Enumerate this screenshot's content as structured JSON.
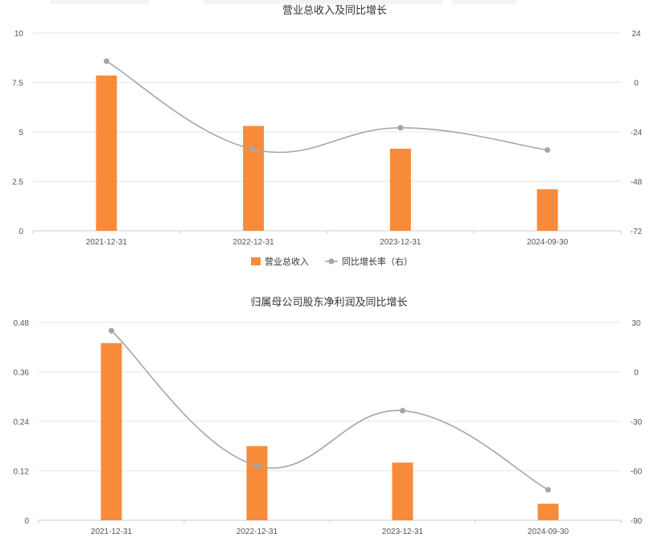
{
  "colors": {
    "bar": "#f88b3a",
    "line": "#a6a6a6",
    "grid": "#e6e6e6",
    "axis": "#cccccc"
  },
  "chart_data": [
    {
      "type": "bar",
      "title": "营业总收入及同比增长",
      "categories": [
        "2021-12-31",
        "2022-12-31",
        "2023-12-31",
        "2024-09-30"
      ],
      "series": [
        {
          "name": "营业总收入",
          "type": "bar",
          "axis": "left",
          "values": [
            7.85,
            5.3,
            4.15,
            2.1
          ]
        },
        {
          "name": "同比增长率（右）",
          "type": "line",
          "axis": "right",
          "values": [
            10.3,
            -32.5,
            -22.0,
            -32.8
          ]
        }
      ],
      "ylim": [
        0,
        10
      ],
      "yticks": [
        "0",
        "2.5",
        "5",
        "7.5",
        "10"
      ],
      "y2lim": [
        -72,
        24
      ],
      "y2ticks": [
        "-72",
        "-48",
        "-24",
        "0",
        "24"
      ],
      "legend": {
        "position": "bottom",
        "items": [
          "营业总收入",
          "同比增长率（右）"
        ]
      },
      "grid": true
    },
    {
      "type": "bar",
      "title": "归属母公司股东净利润及同比增长",
      "categories": [
        "2021-12-31",
        "2022-12-31",
        "2023-12-31",
        "2024-09-30"
      ],
      "series": [
        {
          "name": "营业总收入",
          "type": "bar",
          "axis": "left",
          "values": [
            0.43,
            0.18,
            0.14,
            0.04
          ]
        },
        {
          "name": "同比增长率（右）",
          "type": "line",
          "axis": "right",
          "values": [
            25.0,
            -57.0,
            -23.5,
            -71.5
          ]
        }
      ],
      "ylim": [
        0,
        0.48
      ],
      "yticks": [
        "0",
        "0.12",
        "0.24",
        "0.36",
        "0.48"
      ],
      "y2lim": [
        -90,
        30
      ],
      "y2ticks": [
        "-90",
        "-60",
        "-30",
        "0",
        "30"
      ],
      "grid": true
    }
  ]
}
